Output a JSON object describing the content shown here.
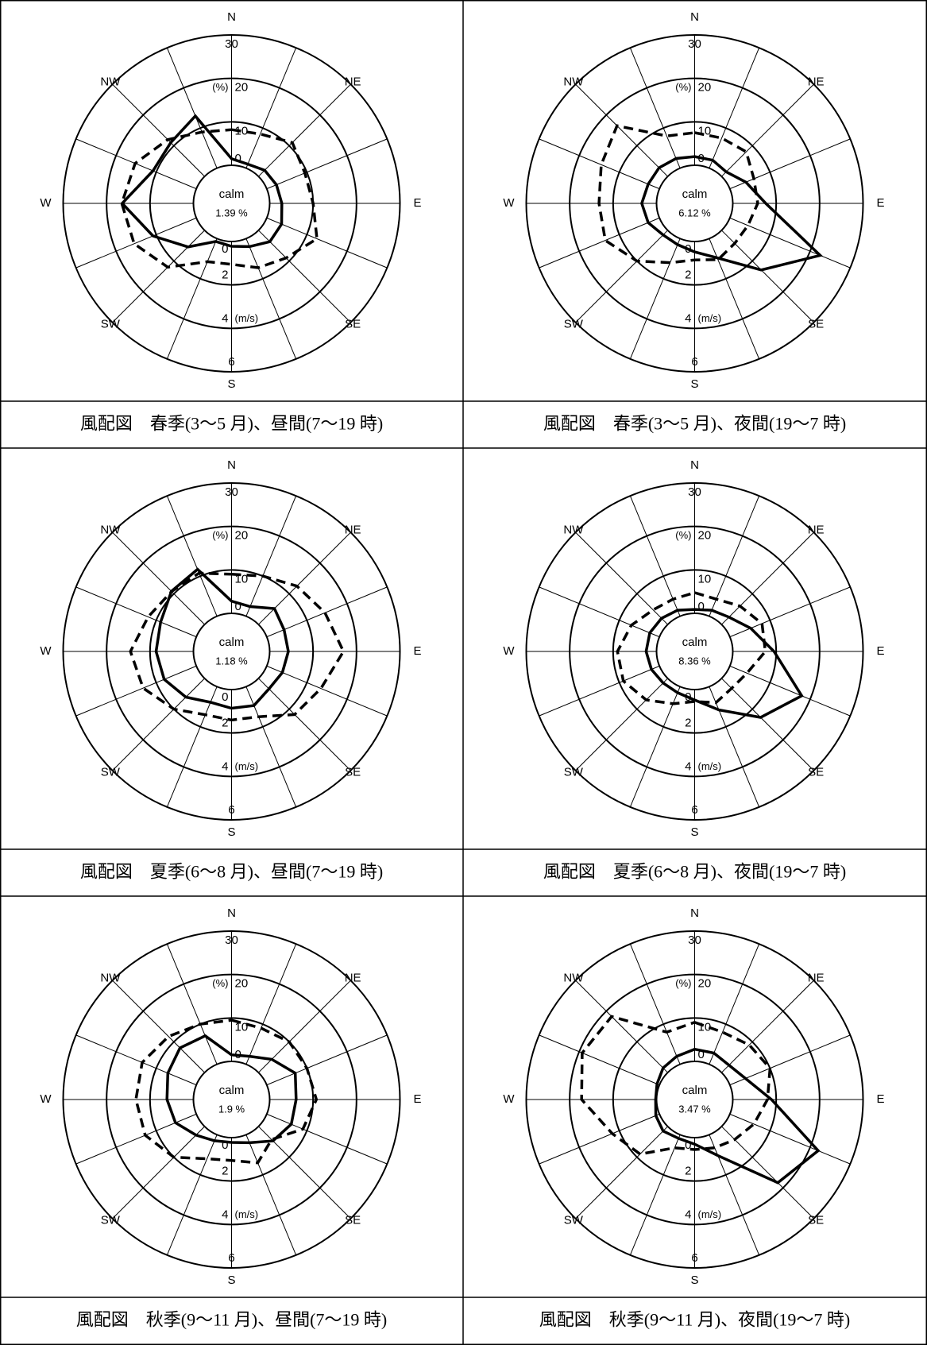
{
  "chart_data": [
    {
      "type": "windrose",
      "title": "風配図　春季(3～5 月)、昼間(7～19 時)",
      "categories": [
        "N",
        null,
        "NE",
        null,
        "E",
        null,
        "SE",
        null,
        "S",
        null,
        "SW",
        null,
        "W",
        null,
        "NW",
        null
      ],
      "rlim": [
        0,
        30
      ],
      "rticks": [
        0,
        10,
        20,
        30
      ],
      "r_unit": "(%)",
      "r2lim": [
        0,
        6
      ],
      "r2ticks": [
        0,
        2,
        4,
        6
      ],
      "r2_unit": "(m/s)",
      "calm_text": "calm",
      "calm": {
        "value": 1.39,
        "label": "1.39 %"
      },
      "series": [
        {
          "style": "solid",
          "color": "#000000",
          "values": [
            1.5,
            1,
            2,
            2.4,
            2.8,
            3.7,
            3.7,
            2,
            1.1,
            0.7,
            5.4,
            10.8,
            16.4,
            10.8,
            11,
            13
          ]
        },
        {
          "style": "dashed",
          "color": "#000000",
          "axis": "r2",
          "values": [
            1.64,
            1.7,
            2.2,
            1.9,
            2.0,
            2.5,
            1.8,
            1.45,
            1.05,
            1.15,
            2.4,
            3.1,
            3.3,
            3.05,
            2.4,
            1.8
          ]
        }
      ]
    },
    {
      "type": "windrose",
      "title": "風配図　春季(3～5 月)、夜間(19～7 時)",
      "categories": [
        "N",
        null,
        "NE",
        null,
        "E",
        null,
        "SE",
        null,
        "S",
        null,
        "SW",
        null,
        "W",
        null,
        "NW",
        null
      ],
      "rlim": [
        0,
        30
      ],
      "rticks": [
        0,
        10,
        20,
        30
      ],
      "r_unit": "(%)",
      "r2lim": [
        0,
        6
      ],
      "r2ticks": [
        0,
        2,
        4,
        6
      ],
      "r2_unit": "(m/s)",
      "calm_text": "calm",
      "calm": {
        "value": 6.12,
        "label": "6.12 %"
      },
      "series": [
        {
          "style": "solid",
          "color": "#000000",
          "values": [
            2,
            2,
            1.5,
            4,
            7.6,
            22.5,
            12.9,
            4.8,
            2.4,
            1.5,
            1.5,
            2.8,
            3.4,
            2.8,
            2.8,
            2.4
          ]
        },
        {
          "style": "dashed",
          "color": "#000000",
          "axis": "r2",
          "values": [
            1.5,
            1.5,
            1.6,
            1.2,
            1.15,
            0.9,
            0.85,
            1.05,
            0.85,
            1.2,
            2.0,
            2.7,
            2.65,
            2.9,
            3.3,
            1.6
          ]
        }
      ]
    },
    {
      "type": "windrose",
      "title": "風配図　夏季(6～8 月)、昼間(7～19 時)",
      "categories": [
        "N",
        null,
        "NE",
        null,
        "E",
        null,
        "SE",
        null,
        "S",
        null,
        "SW",
        null,
        "W",
        null,
        "NW",
        null
      ],
      "rlim": [
        0,
        30
      ],
      "rticks": [
        0,
        10,
        20,
        30
      ],
      "r_unit": "(%)",
      "r2lim": [
        0,
        6
      ],
      "r2ticks": [
        0,
        2,
        4,
        6
      ],
      "r2_unit": "(m/s)",
      "calm_text": "calm",
      "calm": {
        "value": 1.18,
        "label": "1.18 %"
      },
      "series": [
        {
          "style": "solid",
          "color": "#000000",
          "values": [
            2.8,
            2.4,
            5.2,
            4.3,
            4.3,
            3.9,
            3.4,
            4.7,
            4.3,
            3.9,
            6.1,
            8,
            8.6,
            8.9,
            10.8,
            11.7
          ]
        },
        {
          "style": "dashed",
          "color": "#000000",
          "axis": "r2",
          "values": [
            1.8,
            2.0,
            2.5,
            2.9,
            3.4,
            2.7,
            2.35,
            1.5,
            1.4,
            1.4,
            2.0,
            2.65,
            2.9,
            2.4,
            2.15,
            2.15
          ]
        }
      ]
    },
    {
      "type": "windrose",
      "title": "風配図　夏季(6～8 月)、夜間(19～7 時)",
      "categories": [
        "N",
        null,
        "NE",
        null,
        "E",
        null,
        "SE",
        null,
        "S",
        null,
        "SW",
        null,
        "W",
        null,
        "NW",
        null
      ],
      "rlim": [
        0,
        30
      ],
      "rticks": [
        0,
        10,
        20,
        30
      ],
      "r_unit": "(%)",
      "r2lim": [
        0,
        6
      ],
      "r2ticks": [
        0,
        2,
        4,
        6
      ],
      "r2_unit": "(m/s)",
      "calm_text": "calm",
      "calm": {
        "value": 8.36,
        "label": "8.36 %"
      },
      "series": [
        {
          "style": "solid",
          "color": "#000000",
          "values": [
            0.9,
            1.5,
            2.4,
            5.2,
            9.5,
            17.9,
            12.7,
            5.8,
            2.4,
            1.5,
            1.5,
            2,
            2.4,
            2.4,
            2,
            1.5
          ]
        },
        {
          "style": "dashed",
          "color": "#000000",
          "axis": "r2",
          "values": [
            0.95,
            0.85,
            1.2,
            1.6,
            1.5,
            0.85,
            0.65,
            0.8,
            0.55,
            0.85,
            1.4,
            1.8,
            1.8,
            1.4,
            0.95,
            0.85
          ]
        }
      ]
    },
    {
      "type": "windrose",
      "title": "風配図　秋季(9～11 月)、昼間(7～19 時)",
      "categories": [
        "N",
        null,
        "NE",
        null,
        "E",
        null,
        "SE",
        null,
        "S",
        null,
        "SW",
        null,
        "W",
        null,
        "NW",
        null
      ],
      "rlim": [
        0,
        30
      ],
      "rticks": [
        0,
        10,
        20,
        30
      ],
      "r_unit": "(%)",
      "r2lim": [
        0,
        6
      ],
      "r2ticks": [
        0,
        2,
        4,
        6
      ],
      "r2_unit": "(m/s)",
      "calm_text": "calm",
      "calm": {
        "value": 1.9,
        "label": "1.9 %"
      },
      "series": [
        {
          "style": "solid",
          "color": "#000000",
          "values": [
            1.5,
            2,
            4.3,
            7.1,
            6.1,
            6.1,
            4.7,
            2,
            1.1,
            1.5,
            2.8,
            5.2,
            6.1,
            7.1,
            8,
            7.1
          ]
        },
        {
          "style": "dashed",
          "color": "#000000",
          "axis": "r2",
          "values": [
            1.9,
            1.8,
            2.0,
            2.0,
            2.15,
            1.8,
            0.85,
            1.4,
            1.05,
            1.2,
            2.0,
            2.55,
            2.65,
            2.7,
            2.35,
            2.0
          ]
        }
      ]
    },
    {
      "type": "windrose",
      "title": "風配図　秋季(9～11 月)、夜間(19～7 時)",
      "categories": [
        "N",
        null,
        "NE",
        null,
        "E",
        null,
        "SE",
        null,
        "S",
        null,
        "SW",
        null,
        "W",
        null,
        "NW",
        null
      ],
      "rlim": [
        0,
        30
      ],
      "rticks": [
        0,
        10,
        20,
        30
      ],
      "r_unit": "(%)",
      "r2lim": [
        0,
        6
      ],
      "r2ticks": [
        0,
        2,
        4,
        6
      ],
      "r2_unit": "(m/s)",
      "calm_text": "calm",
      "calm": {
        "value": 3.47,
        "label": "3.47 %"
      },
      "series": [
        {
          "style": "solid",
          "color": "#000000",
          "values": [
            2.8,
            2.8,
            2.4,
            3.9,
            8.9,
            22,
            18.3,
            5.2,
            1.5,
            0.9,
            1.5,
            0.9,
            0.2,
            0.6,
            1.5,
            2
          ]
        },
        {
          "style": "dashed",
          "color": "#000000",
          "axis": "r2",
          "values": [
            1.8,
            1.6,
            1.8,
            2.0,
            1.6,
            1.2,
            0.85,
            0.65,
            0.55,
            0.65,
            1.8,
            2.35,
            3.45,
            3.85,
            3.65,
            1.6
          ]
        }
      ]
    }
  ]
}
